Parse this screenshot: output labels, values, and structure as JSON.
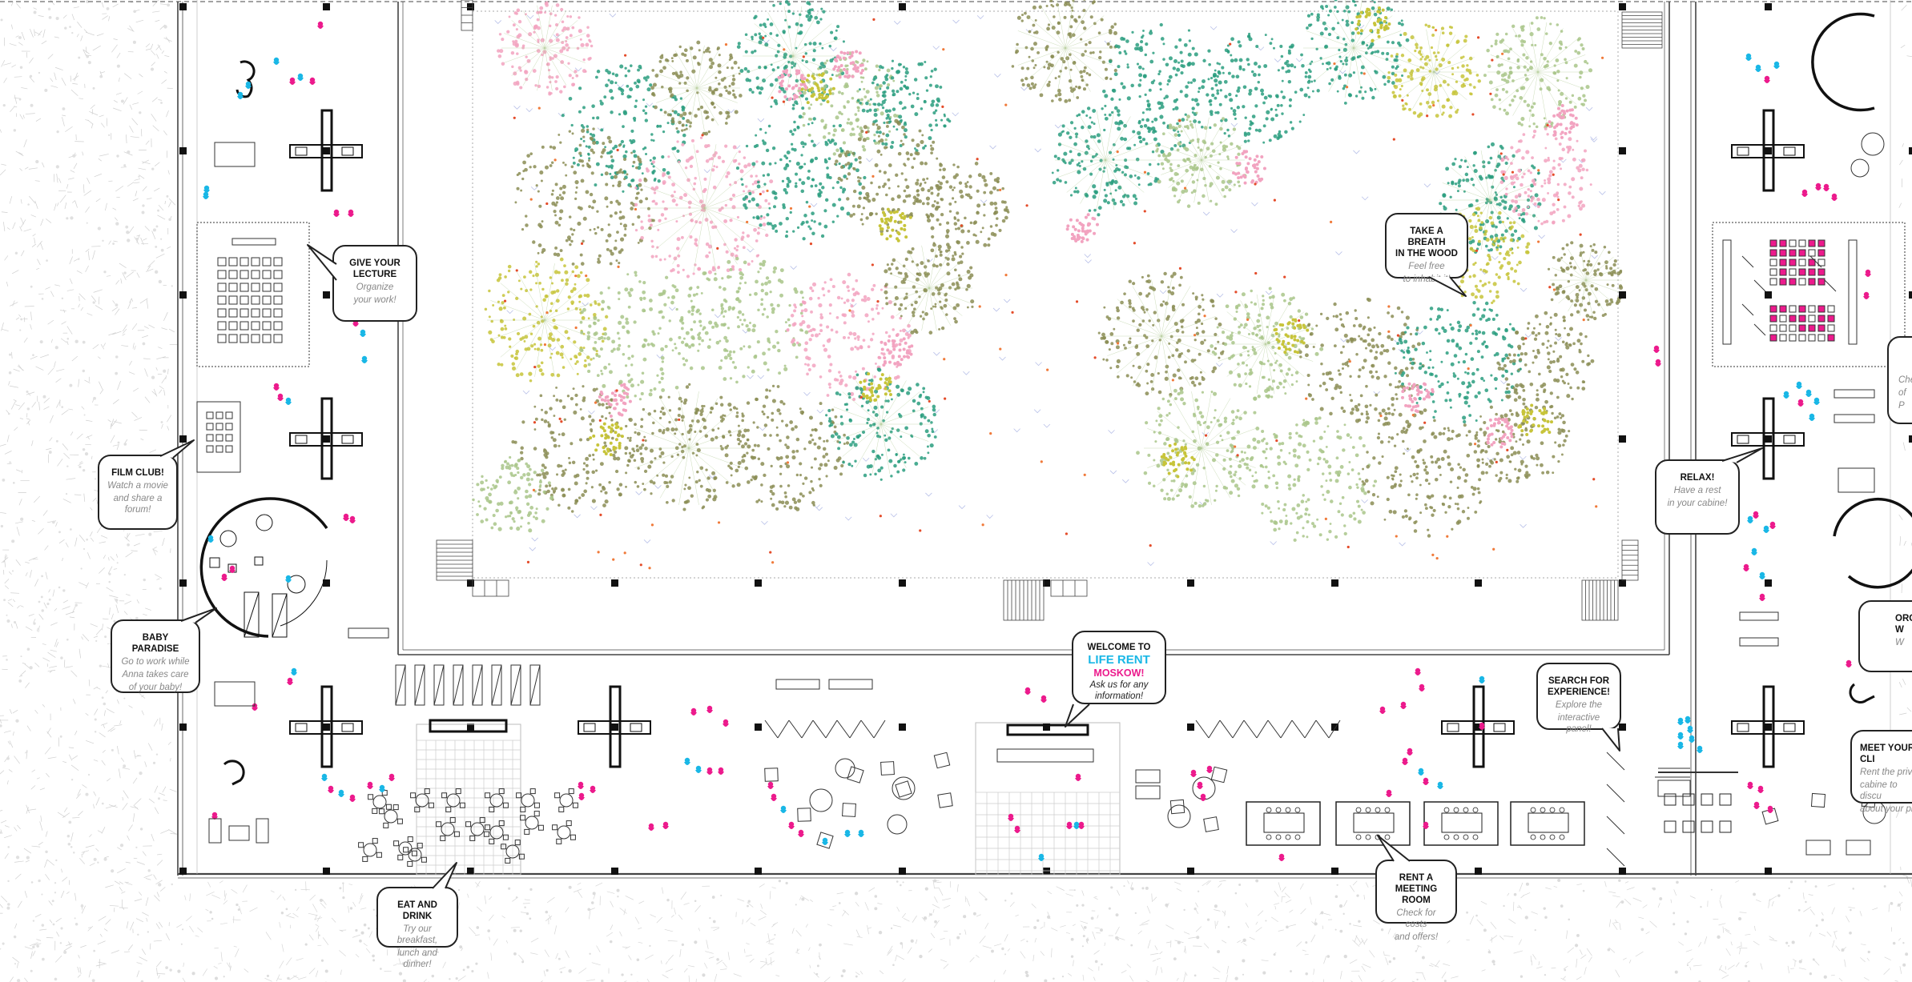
{
  "colors": {
    "accent_cyan": "#19b7e6",
    "accent_magenta": "#ec1a8c",
    "tree_green": "#2a9d7f",
    "tree_olive": "#8b8d55",
    "tree_light": "#a9c58a",
    "tree_pink": "#f2a3c0",
    "tree_yellow": "#c7c43a",
    "line": "#222222",
    "grey": "#9a9a9a"
  },
  "callouts": [
    {
      "id": "give-your-lecture",
      "title": [
        "GIVE YOUR",
        "LECTURE"
      ],
      "sub": [
        "Organize",
        "your work!"
      ]
    },
    {
      "id": "film-club",
      "title": [
        "FILM CLUB!"
      ],
      "sub": [
        "Watch a movie",
        "and share a forum!"
      ]
    },
    {
      "id": "baby-paradise",
      "title": [
        "BABY PARADISE"
      ],
      "sub": [
        "Go to work while",
        "Anna takes care",
        "of your baby!"
      ]
    },
    {
      "id": "eat-and-drink",
      "title": [
        "EAT AND DRINK"
      ],
      "sub": [
        "Try our breakfast,",
        "lunch and dinner!"
      ]
    },
    {
      "id": "take-a-breath",
      "title": [
        "TAKE A BREATH",
        "IN THE WOOD"
      ],
      "sub": [
        "Feel free",
        "to inhabit it!"
      ]
    },
    {
      "id": "relax",
      "title": [
        "RELAX!"
      ],
      "sub": [
        "Have a rest",
        "in your cabine!"
      ]
    },
    {
      "id": "search-for-experience",
      "title": [
        "SEARCH FOR",
        "EXPERIENCE!"
      ],
      "sub": [
        "Explore the",
        "interactive panel!"
      ]
    },
    {
      "id": "rent-a-meeting-room",
      "title": [
        "RENT A",
        "MEETING ROOM"
      ],
      "sub": [
        "Check for costs",
        "and offers!"
      ]
    },
    {
      "id": "meet-your-client",
      "title": [
        "MEET YOUR CLI"
      ],
      "sub": [
        "Rent the privat",
        "cabine to discu",
        "about your pla"
      ]
    },
    {
      "id": "org",
      "title": [
        "ORG",
        "W"
      ],
      "sub": [
        "W"
      ]
    },
    {
      "id": "check",
      "title": [],
      "sub": [
        "Che",
        "of",
        "P"
      ]
    }
  ],
  "welcome": {
    "line1": "WELCOME TO",
    "brand1": "LIFE RENT",
    "brand2": "MOSKOW!",
    "ask": [
      "Ask us for any",
      "information!"
    ]
  },
  "icons": {
    "seat": "chair-icon",
    "table": "table-icon",
    "person": "person-icon",
    "tree": "tree-icon",
    "column": "column-icon"
  }
}
